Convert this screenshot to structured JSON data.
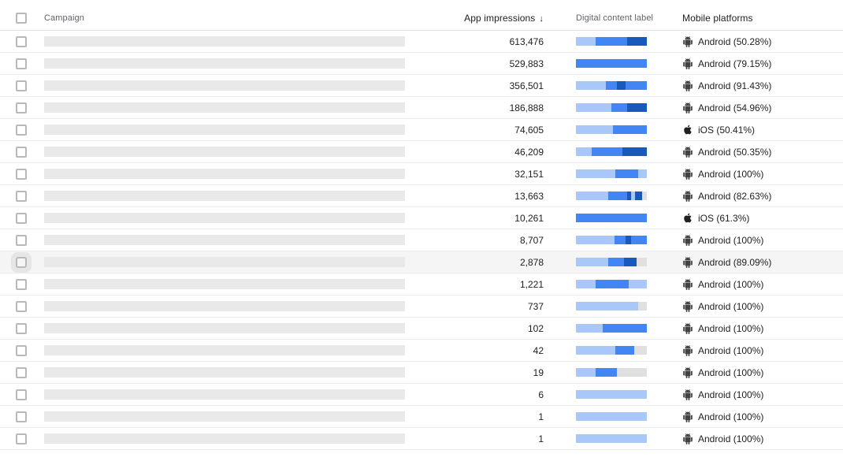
{
  "table": {
    "headers": {
      "campaign": "Campaign",
      "impressions": "App impressions",
      "sort_icon": "↓",
      "content_label": "Digital content label",
      "platforms": "Mobile platforms"
    },
    "palette": {
      "light": "#a9c7f8",
      "mid": "#4285f4",
      "dark": "#185abc",
      "gray": "#e0e0e0"
    },
    "rows": [
      {
        "impressions": "613,476",
        "bar": [
          [
            "light",
            28
          ],
          [
            "mid",
            44
          ],
          [
            "dark",
            28
          ]
        ],
        "platform": "android",
        "platform_label": "Android (50.28%)",
        "highlighted": false
      },
      {
        "impressions": "529,883",
        "bar": [
          [
            "mid",
            100
          ]
        ],
        "platform": "android",
        "platform_label": "Android (79.15%)",
        "highlighted": false
      },
      {
        "impressions": "356,501",
        "bar": [
          [
            "light",
            42
          ],
          [
            "mid",
            16
          ],
          [
            "dark",
            12
          ],
          [
            "mid",
            30
          ]
        ],
        "platform": "android",
        "platform_label": "Android (91.43%)",
        "highlighted": false
      },
      {
        "impressions": "186,888",
        "bar": [
          [
            "light",
            50
          ],
          [
            "mid",
            22
          ],
          [
            "dark",
            28
          ]
        ],
        "platform": "android",
        "platform_label": "Android (54.96%)",
        "highlighted": false
      },
      {
        "impressions": "74,605",
        "bar": [
          [
            "light",
            52
          ],
          [
            "mid",
            48
          ]
        ],
        "platform": "ios",
        "platform_label": "iOS (50.41%)",
        "highlighted": false
      },
      {
        "impressions": "46,209",
        "bar": [
          [
            "light",
            22
          ],
          [
            "mid",
            44
          ],
          [
            "dark",
            34
          ]
        ],
        "platform": "android",
        "platform_label": "Android (50.35%)",
        "highlighted": false
      },
      {
        "impressions": "32,151",
        "bar": [
          [
            "light",
            55
          ],
          [
            "mid",
            33
          ],
          [
            "light",
            12
          ]
        ],
        "platform": "android",
        "platform_label": "Android (100%)",
        "highlighted": false
      },
      {
        "impressions": "13,663",
        "bar": [
          [
            "light",
            46
          ],
          [
            "mid",
            26
          ],
          [
            "dark",
            6
          ],
          [
            "light",
            5
          ],
          [
            "dark",
            10
          ],
          [
            "gray",
            7
          ]
        ],
        "platform": "android",
        "platform_label": "Android (82.63%)",
        "highlighted": false
      },
      {
        "impressions": "10,261",
        "bar": [
          [
            "mid",
            100
          ]
        ],
        "platform": "ios",
        "platform_label": "iOS (61.3%)",
        "highlighted": false
      },
      {
        "impressions": "8,707",
        "bar": [
          [
            "light",
            54
          ],
          [
            "mid",
            16
          ],
          [
            "dark",
            8
          ],
          [
            "mid",
            22
          ]
        ],
        "platform": "android",
        "platform_label": "Android (100%)",
        "highlighted": false
      },
      {
        "impressions": "2,878",
        "bar": [
          [
            "light",
            46
          ],
          [
            "mid",
            22
          ],
          [
            "dark",
            18
          ],
          [
            "gray",
            14
          ]
        ],
        "platform": "android",
        "platform_label": "Android (89.09%)",
        "highlighted": true
      },
      {
        "impressions": "1,221",
        "bar": [
          [
            "light",
            28
          ],
          [
            "mid",
            46
          ],
          [
            "light",
            26
          ]
        ],
        "platform": "android",
        "platform_label": "Android (100%)",
        "highlighted": false
      },
      {
        "impressions": "737",
        "bar": [
          [
            "light",
            88
          ],
          [
            "gray",
            12
          ]
        ],
        "platform": "android",
        "platform_label": "Android (100%)",
        "highlighted": false
      },
      {
        "impressions": "102",
        "bar": [
          [
            "light",
            38
          ],
          [
            "mid",
            62
          ]
        ],
        "platform": "android",
        "platform_label": "Android (100%)",
        "highlighted": false
      },
      {
        "impressions": "42",
        "bar": [
          [
            "light",
            56
          ],
          [
            "mid",
            26
          ],
          [
            "gray",
            18
          ]
        ],
        "platform": "android",
        "platform_label": "Android (100%)",
        "highlighted": false
      },
      {
        "impressions": "19",
        "bar": [
          [
            "light",
            28
          ],
          [
            "mid",
            30
          ],
          [
            "gray",
            42
          ]
        ],
        "platform": "android",
        "platform_label": "Android (100%)",
        "highlighted": false
      },
      {
        "impressions": "6",
        "bar": [
          [
            "light",
            100
          ]
        ],
        "platform": "android",
        "platform_label": "Android (100%)",
        "highlighted": false
      },
      {
        "impressions": "1",
        "bar": [
          [
            "light",
            100
          ]
        ],
        "platform": "android",
        "platform_label": "Android (100%)",
        "highlighted": false
      },
      {
        "impressions": "1",
        "bar": [
          [
            "light",
            100
          ]
        ],
        "platform": "android",
        "platform_label": "Android (100%)",
        "highlighted": false
      }
    ]
  }
}
